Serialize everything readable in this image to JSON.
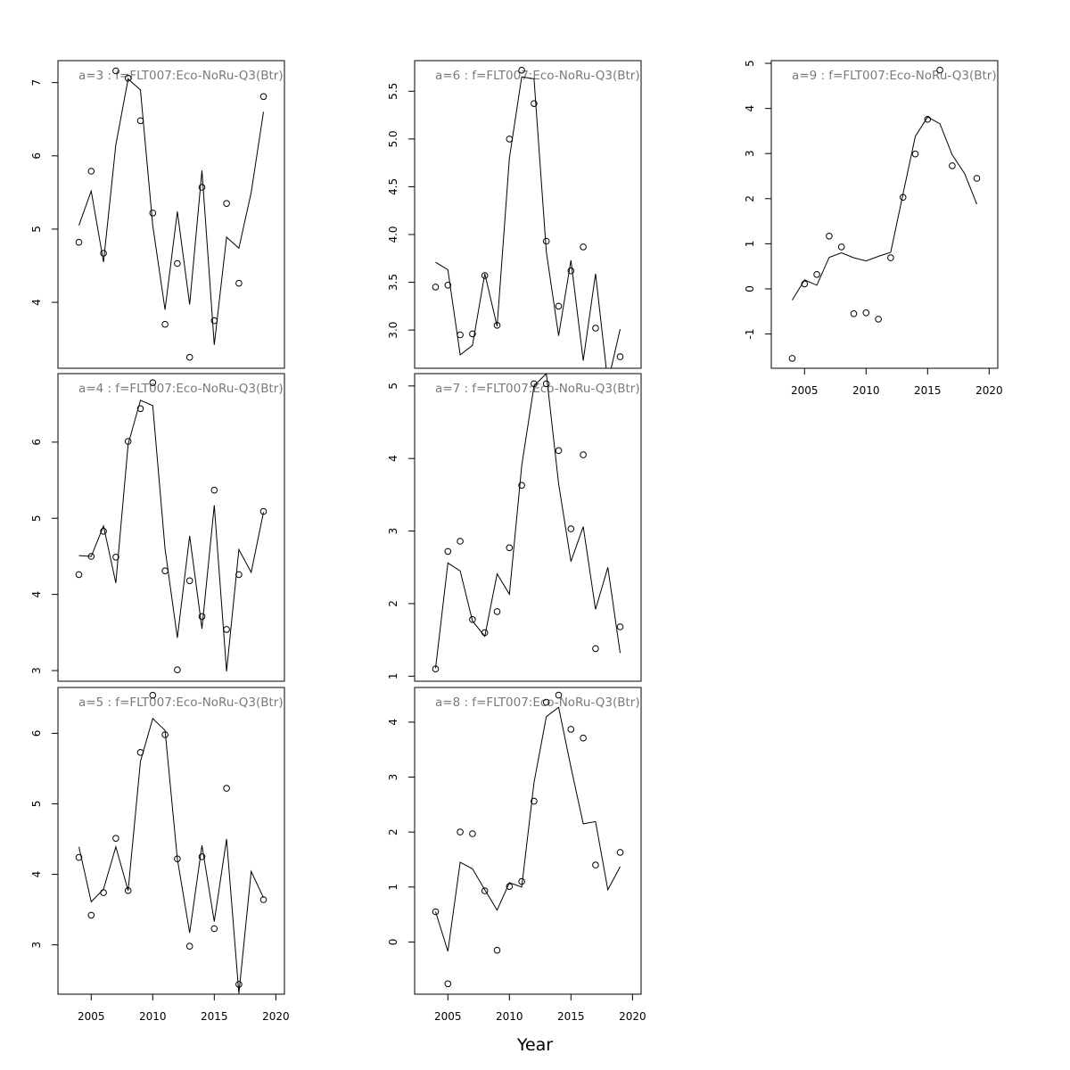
{
  "figure": {
    "xlabel": "Year"
  },
  "chart_data": [
    {
      "type": "line",
      "title": "a=3  :  f=FLT007:Eco-NoRu-Q3(Btr)",
      "xlim": [
        2002.3,
        2020.7
      ],
      "ylim": [
        3.1,
        7.3
      ],
      "yticks": [
        4,
        5,
        6,
        7
      ],
      "xticks": [
        2005,
        2010,
        2015,
        2020
      ],
      "show_xticks": false,
      "series": [
        {
          "kind": "line",
          "x": [
            2004,
            2005,
            2006,
            2007,
            2008,
            2009,
            2010,
            2011,
            2012,
            2013,
            2014,
            2015,
            2016,
            2017,
            2018,
            2019
          ],
          "y": [
            5.05,
            5.52,
            4.55,
            6.15,
            7.05,
            6.9,
            5.05,
            3.9,
            5.24,
            3.97,
            5.8,
            3.42,
            4.89,
            4.74,
            5.5,
            6.6
          ]
        },
        {
          "kind": "points",
          "x": [
            2004,
            2005,
            2006,
            2007,
            2008,
            2009,
            2010,
            2011,
            2012,
            2013,
            2014,
            2015,
            2016,
            2017,
            2019
          ],
          "y": [
            4.82,
            5.79,
            4.67,
            7.16,
            7.06,
            6.48,
            5.22,
            3.7,
            4.53,
            3.25,
            5.57,
            3.75,
            5.35,
            4.26,
            6.81
          ]
        }
      ]
    },
    {
      "type": "line",
      "title": "a=4  :  f=FLT007:Eco-NoRu-Q3(Btr)",
      "xlim": [
        2002.3,
        2020.7
      ],
      "ylim": [
        2.86,
        6.9
      ],
      "yticks": [
        3,
        4,
        5,
        6
      ],
      "xticks": [
        2005,
        2010,
        2015,
        2020
      ],
      "show_xticks": false,
      "series": [
        {
          "kind": "line",
          "x": [
            2004,
            2005,
            2006,
            2007,
            2008,
            2009,
            2010,
            2011,
            2012,
            2013,
            2014,
            2015,
            2016,
            2017,
            2018,
            2019
          ],
          "y": [
            4.51,
            4.5,
            4.9,
            4.15,
            5.97,
            6.55,
            6.48,
            4.6,
            3.43,
            4.77,
            3.55,
            5.17,
            2.99,
            4.59,
            4.29,
            5.08
          ]
        },
        {
          "kind": "points",
          "x": [
            2004,
            2005,
            2006,
            2007,
            2008,
            2009,
            2010,
            2011,
            2012,
            2013,
            2014,
            2015,
            2016,
            2017,
            2019
          ],
          "y": [
            4.26,
            4.5,
            4.83,
            4.49,
            6.01,
            6.44,
            6.78,
            4.31,
            3.01,
            4.18,
            3.71,
            5.37,
            3.54,
            4.26,
            5.09
          ]
        }
      ]
    },
    {
      "type": "line",
      "title": "a=5  :  f=FLT007:Eco-NoRu-Q3(Btr)",
      "xlim": [
        2002.3,
        2020.7
      ],
      "ylim": [
        2.3,
        6.65
      ],
      "yticks": [
        3,
        4,
        5,
        6
      ],
      "xticks": [
        2005,
        2010,
        2015,
        2020
      ],
      "show_xticks": true,
      "series": [
        {
          "kind": "line",
          "x": [
            2004,
            2005,
            2006,
            2007,
            2008,
            2009,
            2010,
            2011,
            2012,
            2013,
            2014,
            2015,
            2016,
            2017,
            2018,
            2019
          ],
          "y": [
            4.39,
            3.61,
            3.79,
            4.39,
            3.77,
            5.6,
            6.21,
            6.04,
            4.22,
            3.17,
            4.41,
            3.33,
            4.5,
            2.31,
            4.04,
            3.67
          ]
        },
        {
          "kind": "points",
          "x": [
            2004,
            2005,
            2006,
            2007,
            2008,
            2009,
            2010,
            2011,
            2012,
            2013,
            2014,
            2015,
            2016,
            2017,
            2019
          ],
          "y": [
            4.24,
            3.42,
            3.74,
            4.51,
            3.77,
            5.73,
            6.54,
            5.98,
            4.22,
            2.98,
            4.25,
            3.23,
            5.22,
            2.44,
            3.64
          ]
        }
      ]
    },
    {
      "type": "line",
      "title": "a=6  :  f=FLT007:Eco-NoRu-Q3(Btr)",
      "xlim": [
        2002.3,
        2020.7
      ],
      "ylim": [
        2.6,
        5.82
      ],
      "yticks": [
        3.0,
        3.5,
        4.0,
        4.5,
        5.0,
        5.5
      ],
      "xticks": [
        2005,
        2010,
        2015,
        2020
      ],
      "show_xticks": false,
      "series": [
        {
          "kind": "line",
          "x": [
            2004,
            2005,
            2006,
            2007,
            2008,
            2009,
            2010,
            2011,
            2012,
            2013,
            2014,
            2015,
            2016,
            2017,
            2018,
            2019
          ],
          "y": [
            3.71,
            3.63,
            2.74,
            2.84,
            3.59,
            3.04,
            4.8,
            5.65,
            5.63,
            3.82,
            2.94,
            3.73,
            2.68,
            3.59,
            2.45,
            3.01
          ]
        },
        {
          "kind": "points",
          "x": [
            2004,
            2005,
            2006,
            2007,
            2008,
            2009,
            2010,
            2011,
            2012,
            2013,
            2014,
            2015,
            2016,
            2017,
            2019
          ],
          "y": [
            3.45,
            3.47,
            2.95,
            2.96,
            3.57,
            3.05,
            5.0,
            5.72,
            5.37,
            3.93,
            3.25,
            3.62,
            3.87,
            3.02,
            2.72
          ]
        }
      ]
    },
    {
      "type": "line",
      "title": "a=7  :  f=FLT007:Eco-NoRu-Q3(Btr)",
      "xlim": [
        2002.3,
        2020.7
      ],
      "ylim": [
        0.93,
        5.17
      ],
      "yticks": [
        1,
        2,
        3,
        4,
        5
      ],
      "xticks": [
        2005,
        2010,
        2015,
        2020
      ],
      "show_xticks": false,
      "series": [
        {
          "kind": "line",
          "x": [
            2004,
            2005,
            2006,
            2007,
            2008,
            2009,
            2010,
            2011,
            2012,
            2013,
            2014,
            2015,
            2016,
            2017,
            2018,
            2019
          ],
          "y": [
            1.11,
            2.56,
            2.45,
            1.76,
            1.55,
            2.41,
            2.13,
            3.9,
            5.0,
            5.17,
            3.65,
            2.58,
            3.06,
            1.92,
            2.5,
            1.32
          ]
        },
        {
          "kind": "points",
          "x": [
            2004,
            2005,
            2006,
            2007,
            2008,
            2009,
            2010,
            2011,
            2012,
            2013,
            2014,
            2015,
            2016,
            2017,
            2019
          ],
          "y": [
            1.1,
            2.72,
            2.86,
            1.78,
            1.6,
            1.89,
            2.77,
            3.63,
            5.03,
            5.03,
            4.11,
            3.03,
            4.05,
            1.38,
            1.68
          ]
        }
      ]
    },
    {
      "type": "line",
      "title": "a=8  :  f=FLT007:Eco-NoRu-Q3(Btr)",
      "xlim": [
        2002.3,
        2020.7
      ],
      "ylim": [
        -0.95,
        4.63
      ],
      "yticks": [
        0,
        1,
        2,
        3,
        4
      ],
      "xticks": [
        2005,
        2010,
        2015,
        2020
      ],
      "show_xticks": true,
      "series": [
        {
          "kind": "line",
          "x": [
            2004,
            2005,
            2006,
            2007,
            2008,
            2009,
            2010,
            2011,
            2012,
            2013,
            2014,
            2015,
            2016,
            2017,
            2018,
            2019
          ],
          "y": [
            0.55,
            -0.17,
            1.45,
            1.33,
            0.95,
            0.58,
            1.08,
            1.0,
            2.9,
            4.1,
            4.27,
            3.18,
            2.15,
            2.19,
            0.95,
            1.37
          ]
        },
        {
          "kind": "points",
          "x": [
            2004,
            2005,
            2006,
            2007,
            2008,
            2009,
            2010,
            2011,
            2012,
            2013,
            2014,
            2015,
            2016,
            2017,
            2019
          ],
          "y": [
            0.55,
            -0.76,
            2.0,
            1.97,
            0.93,
            -0.15,
            1.01,
            1.1,
            2.56,
            4.36,
            4.49,
            3.87,
            3.71,
            1.4,
            1.63
          ]
        }
      ]
    },
    {
      "type": "line",
      "title": "a=9  :  f=FLT007:Eco-NoRu-Q3(Btr)",
      "xlim": [
        2002.3,
        2020.7
      ],
      "ylim": [
        -1.76,
        5.06
      ],
      "yticks": [
        -1,
        0,
        1,
        2,
        3,
        4,
        5
      ],
      "xticks": [
        2005,
        2010,
        2015,
        2020
      ],
      "show_xticks": true,
      "series": [
        {
          "kind": "line",
          "x": [
            2004,
            2005,
            2006,
            2007,
            2008,
            2009,
            2010,
            2011,
            2012,
            2013,
            2014,
            2015,
            2016,
            2017,
            2018,
            2019
          ],
          "y": [
            -0.25,
            0.2,
            0.08,
            0.7,
            0.8,
            0.69,
            0.62,
            0.72,
            0.81,
            2.1,
            3.38,
            3.81,
            3.66,
            2.97,
            2.56,
            1.88
          ]
        },
        {
          "kind": "points",
          "x": [
            2004,
            2005,
            2006,
            2007,
            2008,
            2009,
            2010,
            2011,
            2012,
            2013,
            2014,
            2015,
            2016,
            2017,
            2019
          ],
          "y": [
            -1.54,
            0.11,
            0.32,
            1.17,
            0.93,
            -0.55,
            -0.53,
            -0.67,
            0.69,
            2.03,
            2.99,
            3.76,
            4.85,
            2.73,
            2.45
          ]
        }
      ]
    }
  ]
}
